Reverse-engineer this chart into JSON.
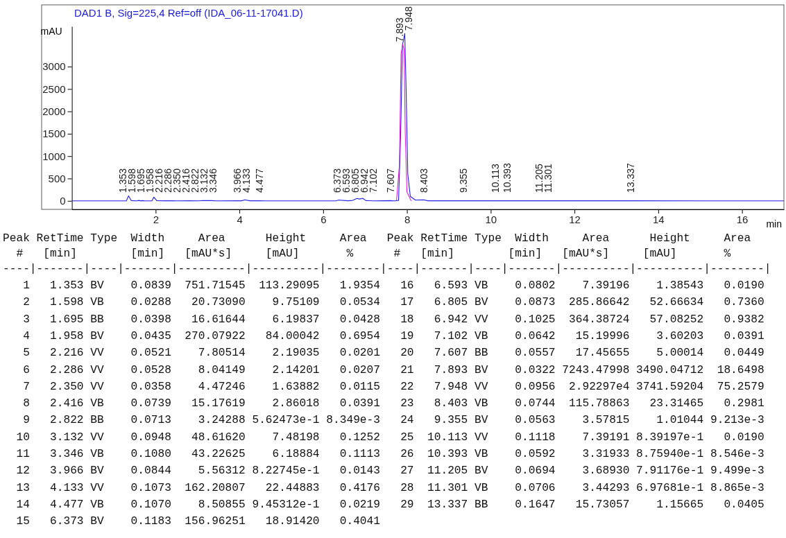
{
  "chart_data": [
    {
      "type": "line",
      "title": "DAD1 B, Sig=225,4 Ref=off (IDA_06-11-17041.D)",
      "xlabel": "min",
      "ylabel": "mAU",
      "xlim": [
        0,
        17
      ],
      "ylim": [
        -190,
        3900
      ],
      "xticks": [
        2,
        4,
        6,
        8,
        10,
        12,
        14,
        16
      ],
      "yticks": [
        0,
        500,
        1000,
        1500,
        2000,
        2500,
        3000
      ],
      "series": [
        {
          "color": "#2020e0",
          "x": [
            0,
            1.3,
            1.353,
            1.42,
            1.55,
            1.598,
            1.64,
            1.695,
            1.74,
            1.91,
            1.958,
            2.03,
            2.216,
            2.286,
            2.35,
            2.416,
            2.5,
            2.822,
            3.0,
            3.132,
            3.346,
            3.45,
            3.966,
            4.05,
            4.133,
            4.25,
            4.477,
            4.6,
            6.3,
            6.373,
            6.593,
            6.7,
            6.805,
            6.87,
            6.942,
            7.02,
            7.102,
            7.2,
            7.607,
            7.7,
            7.8,
            7.85,
            7.893,
            7.92,
            7.948,
            7.98,
            8.02,
            8.08,
            8.2,
            8.403,
            8.5,
            9.355,
            10.113,
            10.393,
            11.205,
            11.301,
            13.337,
            17
          ],
          "values": [
            0,
            0,
            113,
            5,
            0,
            10,
            2,
            6,
            0,
            0,
            84,
            3,
            2,
            2,
            2,
            3,
            0,
            1,
            0,
            7,
            6,
            0,
            1,
            2,
            22,
            2,
            1,
            0,
            0,
            19,
            1,
            10,
            53,
            40,
            57,
            5,
            4,
            0,
            5,
            0,
            10,
            1500,
            3490,
            3600,
            3742,
            2500,
            600,
            100,
            20,
            23,
            2,
            1,
            1,
            1,
            1,
            1,
            1,
            0
          ]
        },
        {
          "color": "#e020e0",
          "x": [
            7.75,
            7.82,
            7.86,
            7.9,
            7.93,
            7.96,
            8.0,
            8.1
          ],
          "values": [
            0,
            800,
            3300,
            3500,
            3400,
            1500,
            200,
            0
          ]
        }
      ],
      "annotations": [
        {
          "text": "1.353",
          "x": 1.353,
          "y": 113
        },
        {
          "text": "1.598",
          "x": 1.598,
          "y": 10
        },
        {
          "text": "1.695",
          "x": 1.695,
          "y": 6
        },
        {
          "text": "1.958",
          "x": 1.958,
          "y": 84
        },
        {
          "text": "2.216",
          "x": 2.216,
          "y": 2
        },
        {
          "text": "2.286",
          "x": 2.286,
          "y": 2
        },
        {
          "text": "2.350",
          "x": 2.35,
          "y": 2
        },
        {
          "text": "2.416",
          "x": 2.416,
          "y": 3
        },
        {
          "text": "2.822",
          "x": 2.822,
          "y": 1
        },
        {
          "text": "3.132",
          "x": 3.132,
          "y": 7
        },
        {
          "text": "3.346",
          "x": 3.346,
          "y": 6
        },
        {
          "text": "3.966",
          "x": 3.966,
          "y": 1
        },
        {
          "text": "4.133",
          "x": 4.133,
          "y": 22
        },
        {
          "text": "4.477",
          "x": 4.477,
          "y": 1
        },
        {
          "text": "6.373",
          "x": 6.373,
          "y": 19
        },
        {
          "text": "6.593",
          "x": 6.593,
          "y": 1
        },
        {
          "text": "6.805",
          "x": 6.805,
          "y": 53
        },
        {
          "text": "6.942",
          "x": 6.942,
          "y": 57
        },
        {
          "text": "7.102",
          "x": 7.102,
          "y": 4
        },
        {
          "text": "7.607",
          "x": 7.607,
          "y": 5
        },
        {
          "text": "7.893",
          "x": 7.893,
          "y": 3490
        },
        {
          "text": "7.948",
          "x": 7.948,
          "y": 3742
        },
        {
          "text": "8.403",
          "x": 8.403,
          "y": 23
        },
        {
          "text": "9.355",
          "x": 9.355,
          "y": 1
        },
        {
          "text": "10.113",
          "x": 10.113,
          "y": 1
        },
        {
          "text": "10.393",
          "x": 10.393,
          "y": 1
        },
        {
          "text": "11.205",
          "x": 11.205,
          "y": 1
        },
        {
          "text": "11.301",
          "x": 11.301,
          "y": 1
        },
        {
          "text": "13.337",
          "x": 13.337,
          "y": 1
        }
      ]
    },
    {
      "type": "other",
      "annotations": [
        "Peak RetTime Type  Width     Area      Height     Area   Peak RetTime Type  Width     Area      Height     Area  ",
        "  #   [min]        [min]   [mAU*s]     [mAU]       %      #   [min]        [min]   [mAU*s]     [mAU]       %   ",
        "----|-------|----|-------|----------|----------|--------|----|-------|----|-------|----------|----------|--------|",
        "   1   1.353 BV    0.0839  751.71545  113.29095   1.9354   16   6.593 VB    0.0802    7.39196    1.38543   0.0190",
        "   2   1.598 VB    0.0288   20.73090    9.75109   0.0534   17   6.805 BV    0.0873  285.86642   52.66634   0.7360",
        "   3   1.695 BB    0.0398   16.61644    6.19837   0.0428   18   6.942 VV    0.1025  364.38724   57.08252   0.9382",
        "   4   1.958 BV    0.0435  270.07922   84.00042   0.6954   19   7.102 VB    0.0642   15.19996    3.60203   0.0391",
        "   5   2.216 VV    0.0521    7.80514    2.19035   0.0201   20   7.607 BB    0.0557   17.45655    5.00014   0.0449",
        "   6   2.286 VV    0.0528    8.04149    2.14201   0.0207   21   7.893 BV    0.0322 7243.47998 3490.04712  18.6498",
        "   7   2.350 VV    0.0358    4.47246    1.63882   0.0115   22   7.948 VV    0.0956  2.92297e4 3741.59204  75.2579",
        "   8   2.416 VB    0.0739   15.17619    2.86018   0.0391   23   8.403 VB    0.0744  115.78863   23.31465   0.2981",
        "   9   2.822 BB    0.0713    3.24288 5.62473e-1 8.349e-3   24   9.355 BV    0.0563    3.57815    1.01044 9.213e-3",
        "  10   3.132 VV    0.0948   48.61620    7.48198   0.1252   25  10.113 VV    0.1118    7.39191 8.39197e-1   0.0190",
        "  11   3.346 VB    0.1080   43.22625    6.18884   0.1113   26  10.393 VB    0.0592    3.31933 8.75940e-1 8.546e-3",
        "  12   3.966 BV    0.0844    5.56312 8.22745e-1   0.0143   27  11.205 BV    0.0694    3.68930 7.91176e-1 9.499e-3",
        "  13   4.133 VV    0.1073  162.20807   22.44883   0.4176   28  11.301 VB    0.0706    3.44293 6.97681e-1 8.865e-3",
        "  14   4.477 VB    0.1070    8.50855 9.45312e-1   0.0219   29  13.337 BB    0.1647   15.73057    1.15665   0.0405",
        "  15   6.373 BV    0.1183  156.96251   18.91420   0.4041"
      ]
    }
  ]
}
